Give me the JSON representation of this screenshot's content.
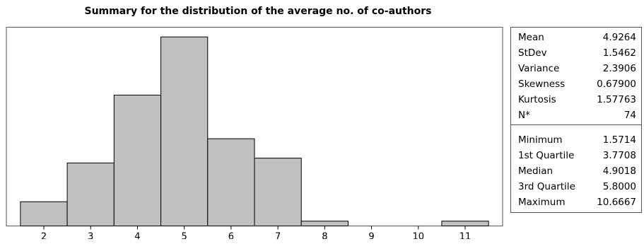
{
  "chart_data": {
    "type": "bar",
    "title": "Summary for the distribution of the average no. of co-authors",
    "xlabel": "",
    "ylabel": "",
    "categories": [
      "2",
      "3",
      "4",
      "5",
      "6",
      "7",
      "8",
      "9",
      "10",
      "11"
    ],
    "values": [
      5,
      13,
      27,
      39,
      18,
      14,
      1,
      0,
      0,
      1
    ],
    "ylim": [
      0,
      41
    ],
    "xlim": [
      1.2,
      11.8
    ],
    "bin_width": 1,
    "grid": false,
    "bar_color": "#c0c0c0",
    "edge_color": "#000000"
  },
  "stats": {
    "moments": [
      {
        "label": "Mean",
        "value": "4.9264"
      },
      {
        "label": "StDev",
        "value": "1.5462"
      },
      {
        "label": "Variance",
        "value": "2.3906"
      },
      {
        "label": "Skewness",
        "value": "0.67900"
      },
      {
        "label": "Kurtosis",
        "value": "1.57763"
      },
      {
        "label": "N*",
        "value": "74"
      }
    ],
    "quantiles": [
      {
        "label": "Minimum",
        "value": "1.5714"
      },
      {
        "label": "1st Quartile",
        "value": "3.7708"
      },
      {
        "label": "Median",
        "value": "4.9018"
      },
      {
        "label": "3rd Quartile",
        "value": "5.8000"
      },
      {
        "label": "Maximum",
        "value": "10.6667"
      }
    ]
  }
}
